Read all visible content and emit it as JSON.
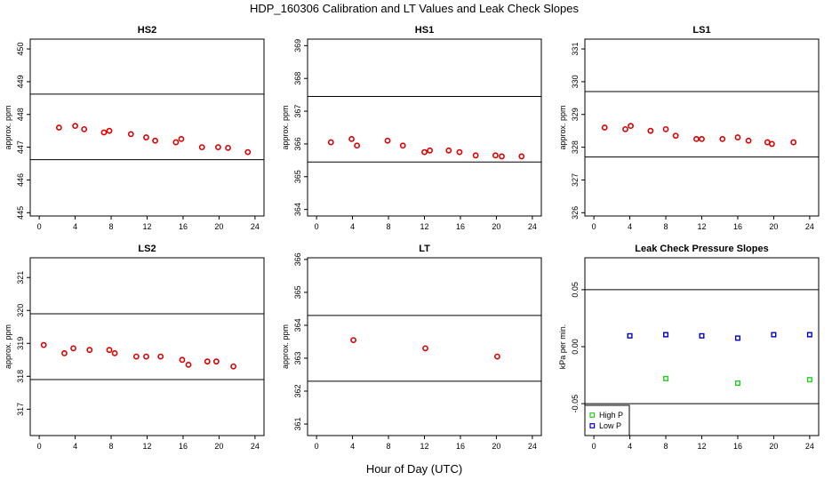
{
  "suptitle": "HDP_160306  Calibration and LT Values and Leak Check Slopes",
  "xlabel": "Hour of Day (UTC)",
  "chart_data": [
    {
      "id": "hs2",
      "type": "scatter",
      "title": "HS2",
      "ylabel": "approx. ppm",
      "xlim": [
        -1,
        25
      ],
      "xticks": [
        0,
        4,
        8,
        12,
        16,
        20,
        24
      ],
      "ylim": [
        444.9,
        450.3
      ],
      "yticks": [
        445,
        446,
        447,
        448,
        449,
        450
      ],
      "hlines": [
        446.62,
        448.62
      ],
      "series": [
        {
          "color": "#dd0000",
          "marker": "circle",
          "x": [
            2.2,
            4.0,
            5.0,
            7.2,
            7.8,
            10.2,
            11.9,
            12.9,
            15.2,
            15.8,
            18.1,
            19.9,
            21.0,
            23.2
          ],
          "y": [
            447.6,
            447.65,
            447.55,
            447.45,
            447.5,
            447.4,
            447.3,
            447.2,
            447.15,
            447.25,
            447.0,
            447.0,
            446.98,
            446.85
          ]
        }
      ]
    },
    {
      "id": "hs1",
      "type": "scatter",
      "title": "HS1",
      "ylabel": "approx. ppm",
      "xlim": [
        -1,
        25
      ],
      "xticks": [
        0,
        4,
        8,
        12,
        16,
        20,
        24
      ],
      "ylim": [
        363.8,
        369.2
      ],
      "yticks": [
        364,
        365,
        366,
        367,
        368,
        369
      ],
      "hlines": [
        365.45,
        367.45
      ],
      "series": [
        {
          "color": "#dd0000",
          "marker": "circle",
          "x": [
            1.6,
            3.9,
            4.5,
            7.9,
            9.6,
            12.0,
            12.6,
            14.7,
            15.9,
            17.7,
            19.9,
            20.6,
            22.8
          ],
          "y": [
            366.05,
            366.15,
            365.95,
            366.1,
            365.95,
            365.75,
            365.8,
            365.8,
            365.75,
            365.65,
            365.65,
            365.62,
            365.62
          ]
        }
      ]
    },
    {
      "id": "ls1",
      "type": "scatter",
      "title": "LS1",
      "ylabel": "approx. ppm",
      "xlim": [
        -1,
        25
      ],
      "xticks": [
        0,
        4,
        8,
        12,
        16,
        20,
        24
      ],
      "ylim": [
        325.9,
        331.3
      ],
      "yticks": [
        326,
        327,
        328,
        329,
        330,
        331
      ],
      "hlines": [
        327.7,
        329.7
      ],
      "series": [
        {
          "color": "#dd0000",
          "marker": "circle",
          "x": [
            1.2,
            3.5,
            4.1,
            6.3,
            8.0,
            9.1,
            11.4,
            12.0,
            14.3,
            16.0,
            17.2,
            19.3,
            19.8,
            22.2
          ],
          "y": [
            328.6,
            328.55,
            328.65,
            328.5,
            328.55,
            328.35,
            328.25,
            328.25,
            328.25,
            328.3,
            328.2,
            328.15,
            328.1,
            328.15
          ]
        }
      ]
    },
    {
      "id": "ls2",
      "type": "scatter",
      "title": "LS2",
      "ylabel": "approx. ppm",
      "xlim": [
        -1,
        25
      ],
      "xticks": [
        0,
        4,
        8,
        12,
        16,
        20,
        24
      ],
      "ylim": [
        316.2,
        321.6
      ],
      "yticks": [
        317,
        318,
        319,
        320,
        321
      ],
      "hlines": [
        317.9,
        319.9
      ],
      "series": [
        {
          "color": "#dd0000",
          "marker": "circle",
          "x": [
            0.5,
            2.8,
            3.8,
            5.6,
            7.8,
            8.4,
            10.8,
            11.9,
            13.5,
            15.9,
            16.6,
            18.7,
            19.7,
            21.6
          ],
          "y": [
            318.95,
            318.7,
            318.85,
            318.8,
            318.8,
            318.7,
            318.6,
            318.6,
            318.6,
            318.5,
            318.35,
            318.45,
            318.45,
            318.3
          ]
        }
      ]
    },
    {
      "id": "lt",
      "type": "scatter",
      "title": "LT",
      "ylabel": "approx. ppm",
      "xlim": [
        -1,
        25
      ],
      "xticks": [
        0,
        4,
        8,
        12,
        16,
        20,
        24
      ],
      "ylim": [
        360.65,
        366.05
      ],
      "yticks": [
        361,
        362,
        363,
        364,
        365,
        366
      ],
      "hlines": [
        362.3,
        364.3
      ],
      "series": [
        {
          "color": "#dd0000",
          "marker": "circle",
          "x": [
            4.1,
            12.1,
            20.1
          ],
          "y": [
            363.55,
            363.3,
            363.05
          ]
        }
      ]
    },
    {
      "id": "leak",
      "type": "scatter",
      "title": "Leak Check Pressure Slopes",
      "ylabel": "kPa per min.",
      "xlim": [
        -1,
        25
      ],
      "xticks": [
        0,
        4,
        8,
        12,
        16,
        20,
        24
      ],
      "ylim": [
        -0.078,
        0.078
      ],
      "yticks": [
        -0.05,
        0.0,
        0.05
      ],
      "ytick_labels": [
        "-0.05",
        "0.00",
        "0.05"
      ],
      "hlines": [
        -0.05,
        0.05
      ],
      "legend": {
        "position": "bottom-left",
        "entries": [
          "High P",
          "Low P"
        ]
      },
      "series": [
        {
          "name": "High P",
          "color": "#22cc22",
          "marker": "square",
          "x": [
            8.0,
            16.0,
            24.0
          ],
          "y": [
            -0.028,
            -0.032,
            -0.029
          ]
        },
        {
          "name": "Low P",
          "color": "#0000cc",
          "marker": "square",
          "x": [
            4.0,
            8.0,
            12.0,
            16.0,
            20.0,
            24.0
          ],
          "y": [
            0.0095,
            0.0105,
            0.0095,
            0.0075,
            0.0105,
            0.0105
          ]
        }
      ]
    }
  ]
}
